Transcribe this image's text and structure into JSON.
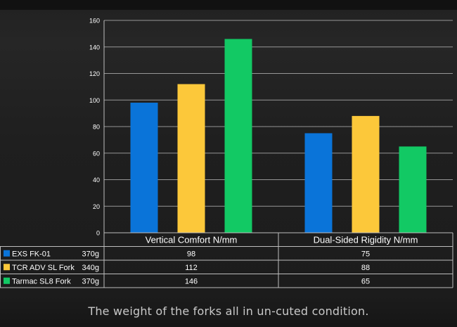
{
  "caption": "The weight of the forks all in un-cuted condition.",
  "colors": {
    "background": "#1b1b1b",
    "grid": "#bdbdbd",
    "text": "#ffffff"
  },
  "chart_data": {
    "type": "bar",
    "categories": [
      "Vertical Comfort N/mm",
      "Dual-Sided Rigidity N/mm"
    ],
    "ylim": [
      0,
      160
    ],
    "yticks": [
      0,
      20,
      40,
      60,
      80,
      100,
      120,
      140,
      160
    ],
    "grid": true,
    "legend": "data-table-left",
    "series": [
      {
        "name": "EXS FK-01",
        "weight": "370g",
        "color": "#0a74d9",
        "values": [
          98,
          75
        ]
      },
      {
        "name": "TCR ADV SL Fork",
        "weight": "340g",
        "color": "#fcc83a",
        "values": [
          112,
          88
        ]
      },
      {
        "name": "Tarmac SL8 Fork",
        "weight": "370g",
        "color": "#12c964",
        "values": [
          146,
          65
        ]
      }
    ]
  }
}
